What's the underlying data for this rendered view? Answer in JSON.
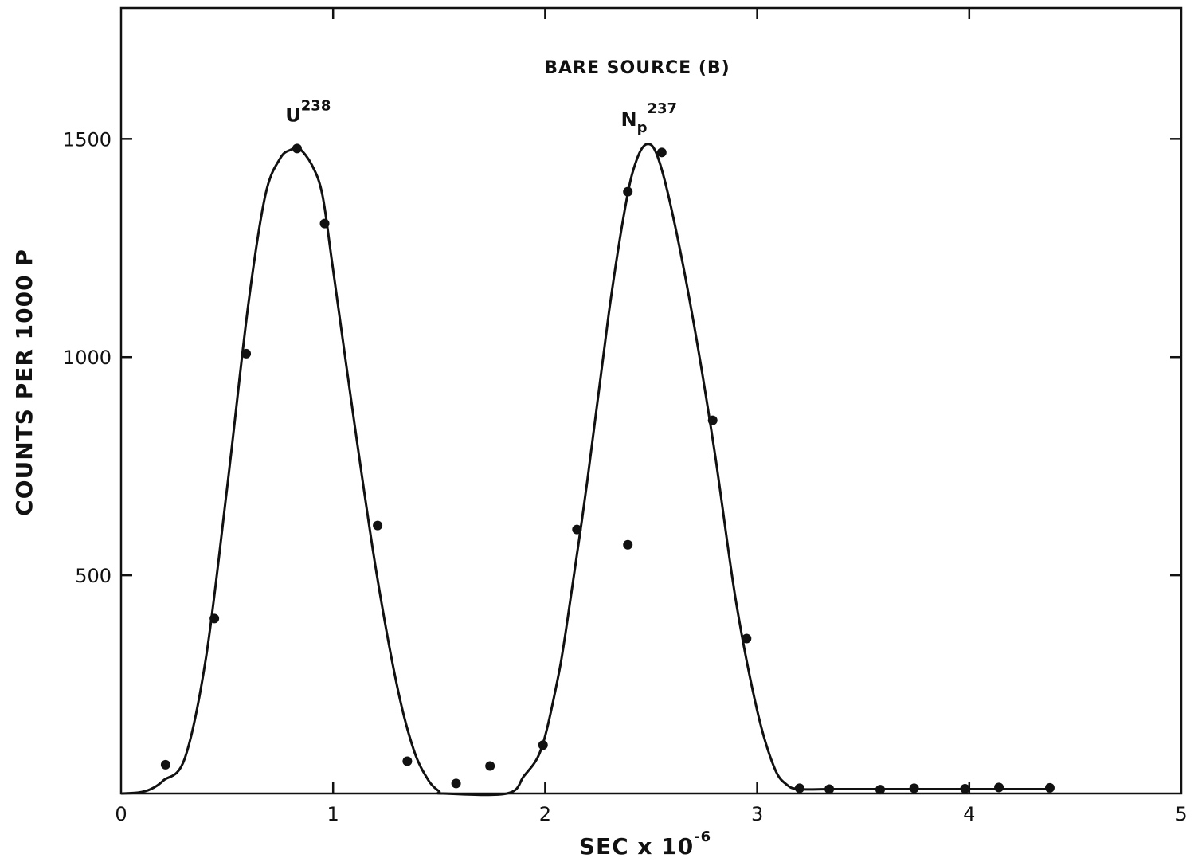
{
  "chart_data": {
    "type": "scatter",
    "title": "BARE SOURCE (B)",
    "xlabel": "SEC x 10",
    "xlabel_exponent": "-6",
    "ylabel": "COUNTS PER 1000 P",
    "xlim": [
      0,
      5
    ],
    "ylim": [
      0,
      1800
    ],
    "x_ticks": [
      0,
      1,
      2,
      3,
      4,
      5
    ],
    "x_tick_labels": [
      "0",
      "1",
      "2",
      "3",
      "4",
      "5"
    ],
    "y_ticks": [
      500,
      1000,
      1500
    ],
    "y_tick_labels": [
      "500",
      "1000",
      "1500"
    ],
    "grid": false,
    "annotations": [
      {
        "base": "U",
        "sup": "238",
        "x": 0.85,
        "y": 1540
      },
      {
        "base": "N",
        "sub": "p",
        "sup": "237",
        "x": 2.47,
        "y": 1530
      }
    ],
    "series": [
      {
        "marker": "points",
        "x": [
          0.21,
          0.44,
          0.59,
          0.83,
          0.96,
          1.21,
          1.35,
          1.58,
          1.74,
          1.99,
          2.15,
          2.39,
          2.39,
          2.55,
          2.79,
          2.95,
          3.2,
          3.34,
          3.58,
          3.74,
          3.98,
          4.14,
          4.38
        ],
        "y": [
          66,
          401,
          1008,
          1478,
          1306,
          614,
          74,
          23,
          63,
          111,
          605,
          1379,
          570,
          1469,
          855,
          355,
          12,
          10,
          9,
          12,
          11,
          14,
          13
        ]
      },
      {
        "marker": "curve",
        "x": [
          0.0,
          0.08,
          0.14,
          0.2,
          0.3,
          0.4,
          0.5,
          0.6,
          0.68,
          0.75,
          0.8,
          0.84,
          0.9,
          0.95,
          1.0,
          1.1,
          1.2,
          1.3,
          1.38,
          1.45,
          1.5,
          1.52,
          1.82,
          1.9,
          1.98,
          2.05,
          2.1,
          2.2,
          2.3,
          2.38,
          2.43,
          2.48,
          2.53,
          2.6,
          2.7,
          2.8,
          2.9,
          3.0,
          3.08,
          3.14,
          3.2,
          3.35,
          3.6,
          4.0,
          4.4
        ],
        "y": [
          0,
          2,
          10,
          30,
          80,
          310,
          700,
          1120,
          1370,
          1455,
          1475,
          1478,
          1440,
          1370,
          1200,
          850,
          520,
          250,
          100,
          30,
          5,
          0,
          0,
          40,
          100,
          240,
          380,
          720,
          1100,
          1350,
          1450,
          1488,
          1460,
          1330,
          1080,
          780,
          440,
          190,
          60,
          20,
          10,
          10,
          10,
          10,
          10
        ]
      }
    ]
  }
}
